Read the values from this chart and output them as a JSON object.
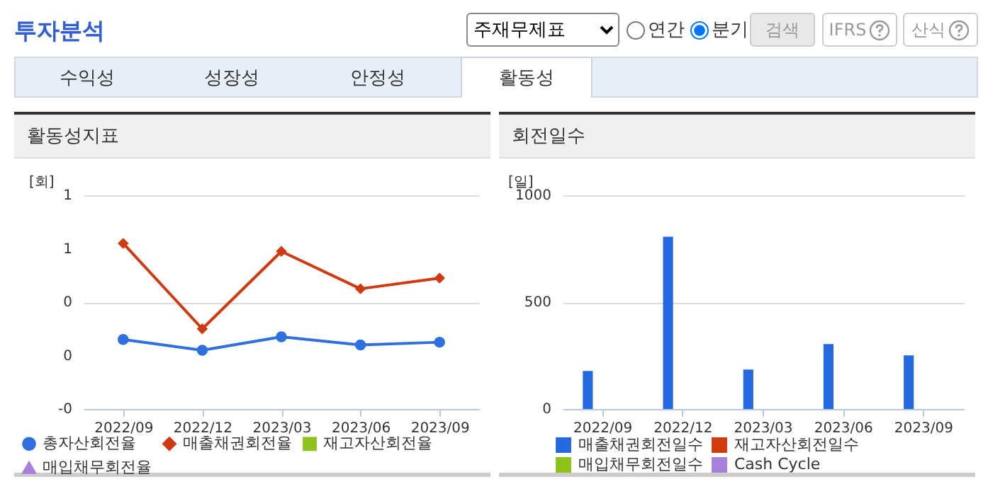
{
  "chart_data": [
    {
      "type": "other",
      "title": "투자분석",
      "annotations": [
        "주재무제표",
        "연간",
        "분기",
        "검색",
        "IFRS",
        "산식",
        "수익성",
        "성장성",
        "안정성",
        "활동성"
      ]
    },
    {
      "type": "line",
      "title": "활동성지표",
      "ylabel": "[회]",
      "categories": [
        "2022/09",
        "2022/12",
        "2023/03",
        "2023/06",
        "2023/09"
      ],
      "ylim": [
        0,
        0.8
      ],
      "yticks": [
        {
          "value": 0,
          "label": "-0"
        },
        {
          "value": 0.2,
          "label": "0"
        },
        {
          "value": 0.4,
          "label": "0"
        },
        {
          "value": 0.6,
          "label": "1"
        },
        {
          "value": 0.8,
          "label": "1"
        }
      ],
      "grid": "y",
      "legend": "bottom",
      "series": [
        {
          "name": "총자산회전율",
          "color": "#2f6fe0",
          "marker": "circle",
          "values": [
            0.26,
            0.22,
            0.27,
            0.24,
            0.25
          ]
        },
        {
          "name": "매출채권회전율",
          "color": "#d03a10",
          "marker": "diamond",
          "values": [
            0.62,
            0.3,
            0.59,
            0.45,
            0.49
          ]
        },
        {
          "name": "재고자산회전율",
          "color": "#8cc21a",
          "marker": "square",
          "values": [
            null,
            null,
            null,
            null,
            null
          ]
        },
        {
          "name": "매입채무회전율",
          "color": "#a87fdc",
          "marker": "triangle",
          "values": [
            null,
            null,
            null,
            null,
            null
          ]
        }
      ]
    },
    {
      "type": "bar",
      "title": "회전일수",
      "ylabel": "[일]",
      "categories": [
        "2022/09",
        "2022/12",
        "2023/03",
        "2023/06",
        "2023/09"
      ],
      "ylim": [
        0,
        1000
      ],
      "yticks": [
        0,
        500,
        1000
      ],
      "grid": "y",
      "legend": "bottom",
      "series": [
        {
          "name": "매출채권회전일수",
          "color": "#2469e0",
          "values": [
            178,
            806,
            185,
            304,
            251
          ]
        },
        {
          "name": "재고자산회전일수",
          "color": "#d03a10",
          "values": [
            null,
            null,
            null,
            null,
            null
          ]
        },
        {
          "name": "매입채무회전일수",
          "color": "#8cc21a",
          "values": [
            null,
            null,
            null,
            null,
            null
          ]
        },
        {
          "name": "Cash Cycle",
          "color": "#a87fdc",
          "values": [
            null,
            null,
            null,
            null,
            null
          ]
        }
      ]
    }
  ]
}
